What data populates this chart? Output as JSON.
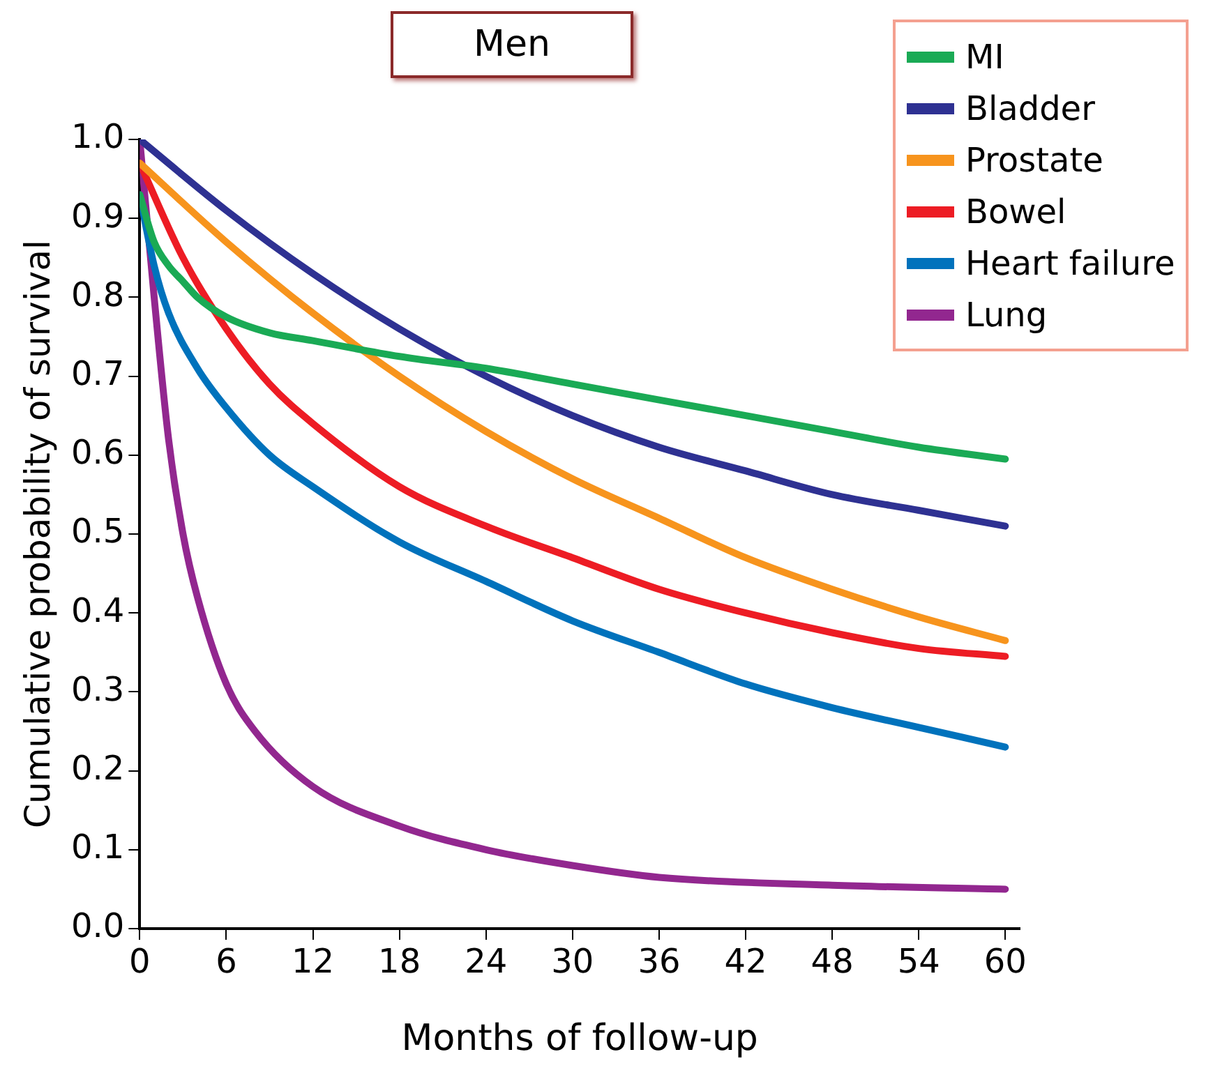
{
  "chart_data": {
    "type": "line",
    "title": "Men",
    "xlabel": "Months of follow-up",
    "ylabel": "Cumulative probability of survival",
    "xlim": [
      0,
      61
    ],
    "xticks": [
      0,
      6,
      12,
      18,
      24,
      30,
      36,
      42,
      48,
      54,
      60
    ],
    "ylim": [
      0,
      1.0
    ],
    "yticks": [
      {
        "value": 0,
        "label": "0.0"
      },
      0.1,
      0.2,
      0.3,
      0.4,
      0.5,
      0.6,
      0.7,
      0.8,
      0.9,
      {
        "value": 1,
        "label": "1.0"
      }
    ],
    "grid": false,
    "legend": "top right",
    "marker": "none",
    "line_style": "solid",
    "series": [
      {
        "name": "MI",
        "color": "#1aaa55",
        "x": [
          0,
          1,
          2,
          3,
          4,
          6,
          9,
          12,
          18,
          24,
          30,
          36,
          42,
          48,
          54,
          60
        ],
        "values": [
          0.93,
          0.87,
          0.84,
          0.82,
          0.8,
          0.775,
          0.755,
          0.745,
          0.725,
          0.71,
          0.69,
          0.67,
          0.65,
          0.63,
          0.61,
          0.595
        ]
      },
      {
        "name": "Bladder",
        "color": "#2e3192",
        "x": [
          0,
          6,
          12,
          18,
          24,
          30,
          36,
          42,
          48,
          54,
          60
        ],
        "values": [
          1.0,
          0.91,
          0.83,
          0.76,
          0.7,
          0.65,
          0.61,
          0.58,
          0.55,
          0.53,
          0.51
        ]
      },
      {
        "name": "Prostate",
        "color": "#f7941d",
        "x": [
          0,
          6,
          12,
          18,
          24,
          30,
          36,
          42,
          48,
          54,
          60
        ],
        "values": [
          0.97,
          0.87,
          0.78,
          0.7,
          0.63,
          0.57,
          0.52,
          0.47,
          0.43,
          0.395,
          0.365
        ]
      },
      {
        "name": "Bowel",
        "color": "#ed1c24",
        "x": [
          0,
          3,
          6,
          9,
          12,
          18,
          24,
          30,
          36,
          42,
          48,
          54,
          60
        ],
        "values": [
          0.97,
          0.85,
          0.76,
          0.69,
          0.64,
          0.56,
          0.51,
          0.47,
          0.43,
          0.4,
          0.375,
          0.355,
          0.345
        ]
      },
      {
        "name": "Heart failure",
        "color": "#0072bc",
        "x": [
          0,
          1,
          2,
          4,
          6,
          9,
          12,
          18,
          24,
          30,
          36,
          42,
          48,
          54,
          60
        ],
        "values": [
          0.93,
          0.84,
          0.78,
          0.71,
          0.66,
          0.6,
          0.56,
          0.49,
          0.44,
          0.39,
          0.35,
          0.31,
          0.28,
          0.255,
          0.23
        ]
      },
      {
        "name": "Lung",
        "color": "#92278f",
        "x": [
          0,
          1,
          2,
          3,
          4,
          6,
          8,
          12,
          18,
          24,
          30,
          36,
          48,
          60
        ],
        "values": [
          1.0,
          0.8,
          0.62,
          0.5,
          0.42,
          0.31,
          0.25,
          0.18,
          0.13,
          0.1,
          0.08,
          0.065,
          0.055,
          0.05
        ]
      }
    ]
  }
}
